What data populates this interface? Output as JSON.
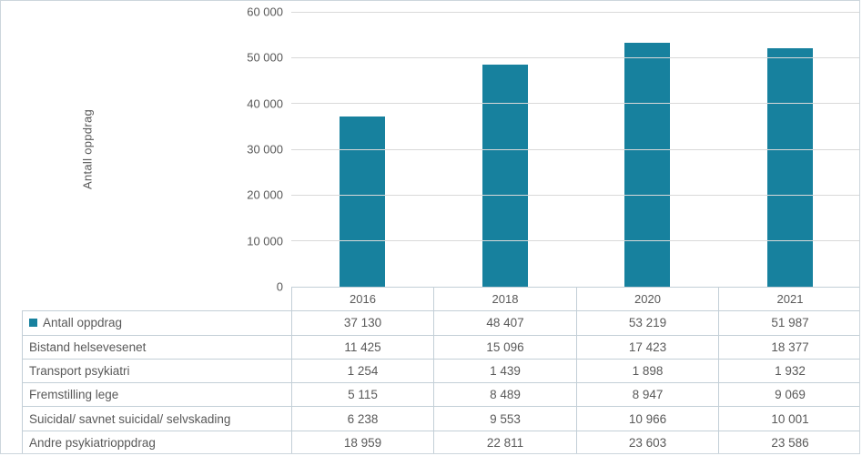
{
  "chart_data": {
    "type": "bar",
    "title": "",
    "xlabel": "",
    "ylabel": "Antall oppdrag",
    "categories": [
      "2016",
      "2018",
      "2020",
      "2021"
    ],
    "series": [
      {
        "name": "Antall oppdrag",
        "values": [
          37130,
          48407,
          53219,
          51987
        ]
      }
    ],
    "ylim": [
      0,
      60000
    ],
    "ytick_step": 10000,
    "ytick_labels": [
      "0",
      "10 000",
      "20 000",
      "30 000",
      "40 000",
      "50 000",
      "60 000"
    ],
    "grid": true,
    "legend_position": "data-table-row-label",
    "bar_color": "#17819e",
    "grid_color": "#d9d9d9"
  },
  "table": {
    "corner_label": "",
    "column_headers": [
      "2016",
      "2018",
      "2020",
      "2021"
    ],
    "rows": [
      {
        "label": "Antall oppdrag",
        "legend": true,
        "values": [
          "37 130",
          "48 407",
          "53 219",
          "51 987"
        ]
      },
      {
        "label": "Bistand helsevesenet",
        "legend": false,
        "values": [
          "11 425",
          "15 096",
          "17 423",
          "18 377"
        ]
      },
      {
        "label": "Transport psykiatri",
        "legend": false,
        "values": [
          "1 254",
          "1 439",
          "1 898",
          "1 932"
        ]
      },
      {
        "label": "Fremstilling lege",
        "legend": false,
        "values": [
          "5 115",
          "8 489",
          "8 947",
          "9 069"
        ]
      },
      {
        "label": "Suicidal/ savnet suicidal/ selvskading",
        "legend": false,
        "values": [
          "6 238",
          "9 553",
          "10 966",
          "10 001"
        ]
      },
      {
        "label": "Andre psykiatrioppdrag",
        "legend": false,
        "values": [
          "18 959",
          "22 811",
          "23 603",
          "23 586"
        ]
      }
    ]
  }
}
